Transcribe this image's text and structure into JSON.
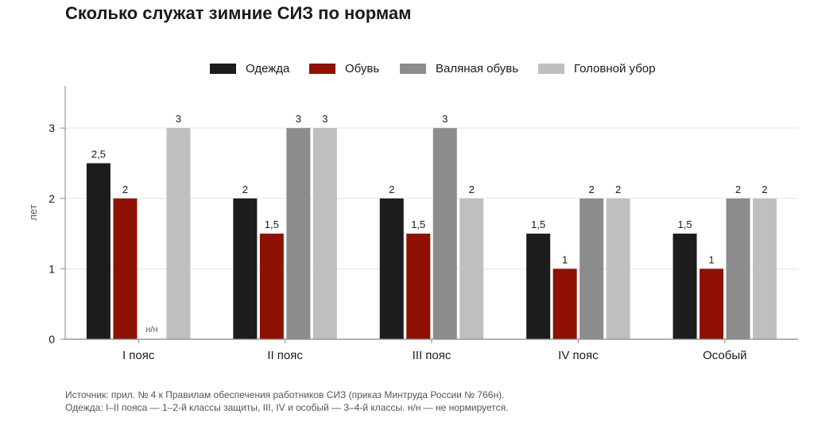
{
  "chart_data": {
    "type": "bar",
    "title": "Сколько служат зимние СИЗ по нормам",
    "ylabel": "лет",
    "xlabel": "",
    "categories": [
      "I пояс",
      "II пояс",
      "III пояс",
      "IV пояс",
      "Особый"
    ],
    "series": [
      {
        "name": "Одежда",
        "color": "#1c1c1c",
        "values": [
          2.5,
          2,
          2,
          1.5,
          1.5
        ],
        "labels": [
          "2,5",
          "2",
          "2",
          "1,5",
          "1,5"
        ]
      },
      {
        "name": "Обувь",
        "color": "#8f1104",
        "values": [
          2,
          1.5,
          1.5,
          1,
          1
        ],
        "labels": [
          "2",
          "1,5",
          "1,5",
          "1",
          "1"
        ]
      },
      {
        "name": "Валяная обувь",
        "color": "#8c8c8c",
        "values": [
          null,
          3,
          3,
          2,
          2
        ],
        "labels": [
          "н/н",
          "3",
          "3",
          "2",
          "2"
        ]
      },
      {
        "name": "Головной убор",
        "color": "#bfbfbf",
        "values": [
          3,
          3,
          2,
          2,
          2
        ],
        "labels": [
          "3",
          "3",
          "2",
          "2",
          "2"
        ]
      }
    ],
    "ylim": [
      0,
      3.6
    ],
    "yticks": [
      0,
      1,
      2,
      3
    ],
    "ytick_labels": [
      "0",
      "1",
      "2",
      "3"
    ],
    "grid": true,
    "legend_position": "top-center"
  },
  "footnote": {
    "source": "Источник: прил. № 4 к Правилам обеспечения работников СИЗ (приказ Минтруда России № 766н).",
    "note": "Одежда: I–II пояса — 1–2-й классы защиты, III, IV и особый — 3–4-й классы. н/н — не нормируется."
  }
}
